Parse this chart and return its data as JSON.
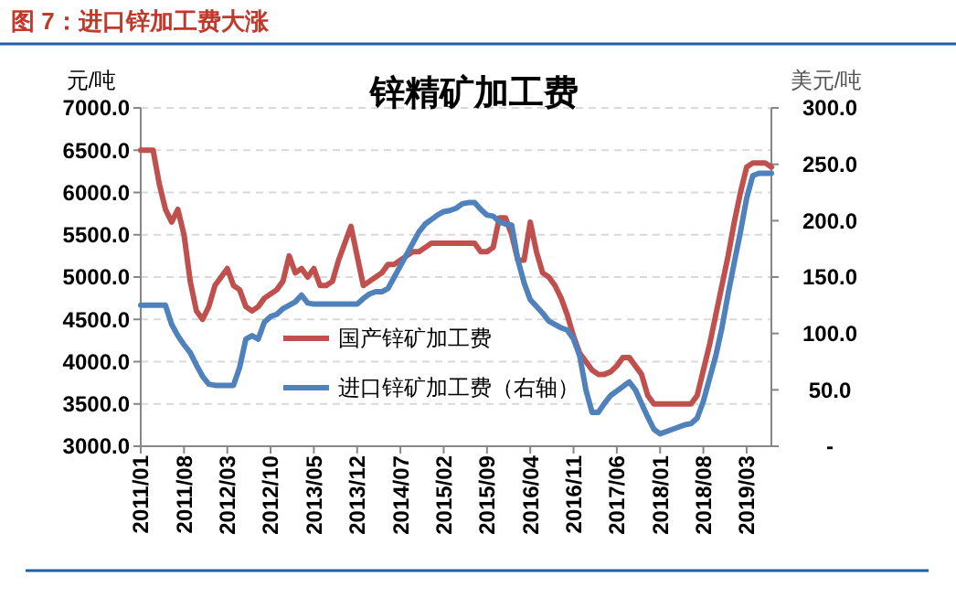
{
  "chart_data": {
    "type": "line",
    "title": "图 7：进口锌加工费大涨",
    "subtitle": "锌精矿加工费",
    "ylabel": "元/吨",
    "y2label": "美元/吨",
    "categories": [
      "2011/01",
      null,
      null,
      null,
      null,
      null,
      null,
      "2011/08",
      null,
      null,
      null,
      null,
      null,
      null,
      "2012/03",
      null,
      null,
      null,
      null,
      null,
      null,
      "2012/10",
      null,
      null,
      null,
      null,
      null,
      null,
      "2013/05",
      null,
      null,
      null,
      null,
      null,
      null,
      "2013/12",
      null,
      null,
      null,
      null,
      null,
      null,
      "2014/07",
      null,
      null,
      null,
      null,
      null,
      null,
      "2015/02",
      null,
      null,
      null,
      null,
      null,
      null,
      "2015/09",
      null,
      null,
      null,
      null,
      null,
      null,
      "2016/04",
      null,
      null,
      null,
      null,
      null,
      null,
      "2016/11",
      null,
      null,
      null,
      null,
      null,
      null,
      "2017/06",
      null,
      null,
      null,
      null,
      null,
      null,
      "2018/01",
      null,
      null,
      null,
      null,
      null,
      null,
      "2018/08",
      null,
      null,
      null,
      null,
      null,
      null,
      "2019/03",
      null,
      null,
      null,
      null
    ],
    "series": [
      {
        "name": "国产锌矿加工费",
        "color": "#c0504d",
        "values": [
          6500,
          6500,
          6500,
          6100,
          5800,
          5650,
          5800,
          5500,
          4950,
          4600,
          4500,
          4650,
          4900,
          5000,
          5100,
          4900,
          4850,
          4650,
          4600,
          4650,
          4750,
          4800,
          4850,
          4950,
          5250,
          5050,
          5100,
          5000,
          5100,
          4900,
          4900,
          4950,
          5200,
          5400,
          5600,
          5250,
          4900,
          4950,
          5000,
          5050,
          5150,
          5150,
          5200,
          5250,
          5300,
          5300,
          5350,
          5400,
          5400,
          5400,
          5400,
          5400,
          5400,
          5400,
          5400,
          5300,
          5300,
          5350,
          5700,
          5700,
          5500,
          5200,
          5200,
          5650,
          5300,
          5050,
          5000,
          4900,
          4750,
          4550,
          4300,
          4100,
          4000,
          3900,
          3850,
          3850,
          3880,
          3950,
          4050,
          4050,
          3950,
          3850,
          3600,
          3500,
          3500,
          3500,
          3500,
          3500,
          3500,
          3500,
          3600,
          3900,
          4200,
          4550,
          4900,
          5250,
          5650,
          6000,
          6300,
          6350,
          6350,
          6350,
          6300
        ]
      },
      {
        "name": "进口锌矿加工费（右轴）",
        "color": "#4f81bd",
        "axis": "y2",
        "values": [
          125,
          125,
          125,
          125,
          125,
          108,
          98,
          90,
          83,
          72,
          62,
          55,
          54,
          54,
          54,
          54,
          70,
          95,
          98,
          95,
          110,
          115,
          117,
          122,
          125,
          128,
          134,
          127,
          126,
          126,
          126,
          126,
          126,
          126,
          126,
          126,
          131,
          135,
          137,
          137,
          140,
          150,
          160,
          170,
          180,
          190,
          197,
          201,
          205,
          208,
          209,
          211,
          215,
          216,
          216,
          210,
          205,
          204,
          199,
          197,
          196,
          165,
          145,
          130,
          124,
          118,
          111,
          108,
          105,
          103,
          95,
          80,
          50,
          30,
          30,
          38,
          45,
          49,
          53,
          57,
          50,
          38,
          26,
          15,
          11,
          13,
          15,
          17,
          19,
          20,
          25,
          40,
          60,
          80,
          105,
          135,
          163,
          190,
          220,
          240,
          242,
          242,
          242
        ]
      }
    ],
    "ylim": [
      3000,
      7000
    ],
    "yticks": [
      {
        "value": 3000,
        "label": "3000.0"
      },
      {
        "value": 3500,
        "label": "3500.0"
      },
      {
        "value": 4000,
        "label": "4000.0"
      },
      {
        "value": 4500,
        "label": "4500.0"
      },
      {
        "value": 5000,
        "label": "5000.0"
      },
      {
        "value": 5500,
        "label": "5500.0"
      },
      {
        "value": 6000,
        "label": "6000.0"
      },
      {
        "value": 6500,
        "label": "6500.0"
      },
      {
        "value": 7000,
        "label": "7000.0"
      }
    ],
    "y2lim": [
      0,
      300
    ],
    "y2ticks": [
      {
        "value": 0,
        "label": "-"
      },
      {
        "value": 50,
        "label": "50.0"
      },
      {
        "value": 100,
        "label": "100.0"
      },
      {
        "value": 150,
        "label": "150.0"
      },
      {
        "value": 200,
        "label": "200.0"
      },
      {
        "value": 250,
        "label": "250.0"
      },
      {
        "value": 300,
        "label": "300.0"
      }
    ],
    "grid": "y",
    "legend": "bottom",
    "line_style": "solid"
  }
}
